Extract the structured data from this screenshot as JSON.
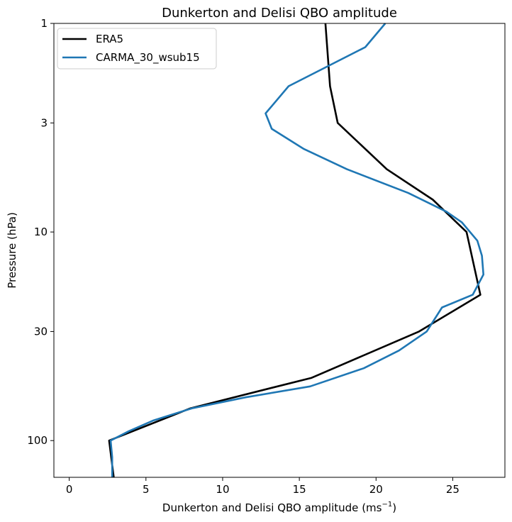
{
  "chart_data": {
    "type": "line",
    "title": "Dunkerton and Delisi QBO amplitude",
    "xlabel": "Dunkerton and Delisi QBO amplitude",
    "xlabel_unit_base": "(ms",
    "xlabel_unit_exp": "−1",
    "xlabel_unit_close": ")",
    "ylabel": "Pressure (hPa)",
    "xlim": [
      -1.0,
      28.4
    ],
    "ylim": [
      150,
      1
    ],
    "yscale": "log",
    "grid": false,
    "legend_position": "top-left",
    "x_ticks": [
      0,
      5,
      10,
      15,
      20,
      25
    ],
    "x_tick_labels": [
      "0",
      "5",
      "10",
      "15",
      "20",
      "25"
    ],
    "y_ticks": [
      1,
      3,
      10,
      30,
      100
    ],
    "y_tick_labels": [
      "1",
      "3",
      "10",
      "30",
      "100"
    ],
    "series": [
      {
        "name": "ERA5",
        "color": "#000000",
        "points": [
          [
            16.7,
            1
          ],
          [
            17.0,
            2
          ],
          [
            17.5,
            3
          ],
          [
            20.7,
            5
          ],
          [
            23.7,
            7
          ],
          [
            25.9,
            10
          ],
          [
            26.8,
            20
          ],
          [
            22.8,
            30
          ],
          [
            15.8,
            50
          ],
          [
            7.9,
            70
          ],
          [
            2.6,
            100
          ],
          [
            2.9,
            150
          ]
        ]
      },
      {
        "name": "CARMA_30_wsub15",
        "color": "#1f77b4",
        "points": [
          [
            20.6,
            1
          ],
          [
            19.3,
            1.3
          ],
          [
            14.3,
            2
          ],
          [
            12.8,
            2.7
          ],
          [
            13.2,
            3.2
          ],
          [
            15.3,
            4
          ],
          [
            18.1,
            5
          ],
          [
            22.1,
            6.5
          ],
          [
            24.6,
            8
          ],
          [
            25.6,
            9
          ],
          [
            26.6,
            11
          ],
          [
            26.9,
            13
          ],
          [
            27.0,
            16
          ],
          [
            26.3,
            20
          ],
          [
            24.3,
            23
          ],
          [
            23.3,
            30
          ],
          [
            21.5,
            37
          ],
          [
            19.2,
            45
          ],
          [
            15.7,
            55
          ],
          [
            11.5,
            62
          ],
          [
            8.0,
            70
          ],
          [
            5.5,
            80
          ],
          [
            3.9,
            90
          ],
          [
            2.7,
            100
          ],
          [
            2.8,
            120
          ],
          [
            2.8,
            150
          ]
        ]
      }
    ]
  }
}
